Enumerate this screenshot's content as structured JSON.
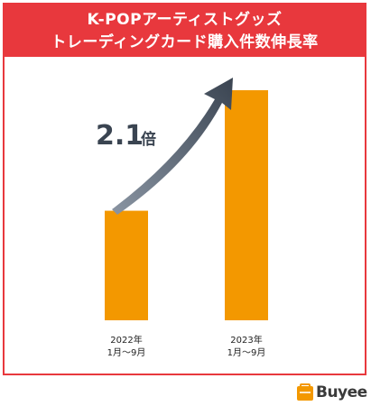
{
  "title": {
    "line1": "K-POPアーティストグッズ",
    "line2": "トレーディングカード購入件数伸長率"
  },
  "chart_data": {
    "type": "bar",
    "categories": [
      {
        "year": "2022年",
        "period": "1月〜9月"
      },
      {
        "year": "2023年",
        "period": "1月〜9月"
      }
    ],
    "values": [
      1,
      2.1
    ],
    "ratio_label": {
      "number": "2.1",
      "unit": "倍"
    },
    "xlabel": "",
    "ylabel": "",
    "grid": false,
    "legend": "none"
  },
  "colors": {
    "brand_red": "#e8383d",
    "bar": "#f39800",
    "arrow": "#3a4451"
  },
  "logo": {
    "text": "Buyee",
    "icon": "buyee-logo-icon"
  }
}
